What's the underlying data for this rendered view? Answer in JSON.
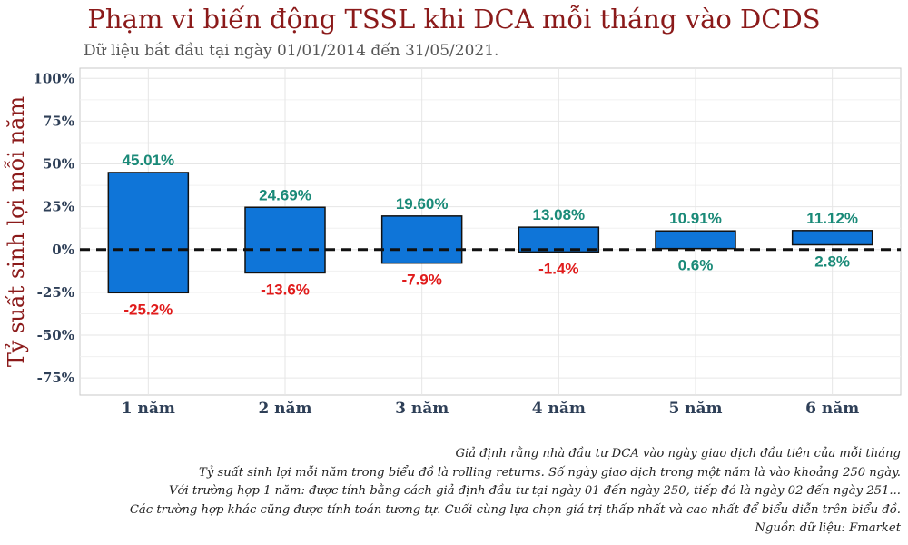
{
  "chart_data": {
    "type": "bar",
    "subtype": "floating-range",
    "title": "Phạm vi biến động TSSL khi DCA mỗi tháng vào DCDS",
    "subtitle": "Dữ liệu bắt đầu tại ngày 01/01/2014  đến 31/05/2021.",
    "xlabel": "",
    "ylabel": "Tỷ suất sinh lợi mỗi năm",
    "categories": [
      "1 năm",
      "2 năm",
      "3 năm",
      "4 năm",
      "5 năm",
      "6 năm"
    ],
    "series": [
      {
        "name": "max",
        "values": [
          45.01,
          24.69,
          19.6,
          13.08,
          10.91,
          11.12
        ],
        "labels": [
          "45.01%",
          "24.69%",
          "19.60%",
          "13.08%",
          "10.91%",
          "11.12%"
        ]
      },
      {
        "name": "min",
        "values": [
          -25.2,
          -13.6,
          -7.9,
          -1.4,
          0.6,
          2.8
        ],
        "labels": [
          "-25.2%",
          "-13.6%",
          "-7.9%",
          "-1.4%",
          "0.6%",
          "2.8%"
        ]
      }
    ],
    "yticks": [
      100,
      75,
      50,
      25,
      0,
      -25,
      -50,
      -75
    ],
    "ytick_labels": [
      "100%",
      "75%",
      "50%",
      "25%",
      "0%",
      "-25%",
      "-50%",
      "-75%"
    ],
    "ylim": [
      -85,
      106
    ],
    "reference_line": 0,
    "grid": true,
    "colors": {
      "bar": "#0f75d8",
      "bar_edge": "#111111",
      "positive_label": "#1a8a78",
      "negative_label": "#e01b1b",
      "title": "#8b1a1a",
      "axis_text": "#2e3f57",
      "grid": "#e6e6e6"
    }
  },
  "notes": [
    "Giả định rằng nhà đầu tư DCA vào ngày giao dịch đầu tiên của mỗi tháng",
    "Tỷ suất sinh lợi mỗi năm trong biểu đồ là rolling returns. Số ngày giao dịch trong một năm là vào khoảng 250 ngày.",
    "Với trường hợp 1 năm: được tính bằng cách giả định đầu tư tại ngày 01 đến ngày 250, tiếp đó là ngày 02 đến ngày 251...",
    "Các trường hợp khác cũng được tính toán tương tự. Cuối cùng lựa chọn giá trị thấp nhất và cao nhất để biểu diễn trên biểu đồ.",
    "Nguồn dữ liệu: Fmarket"
  ]
}
